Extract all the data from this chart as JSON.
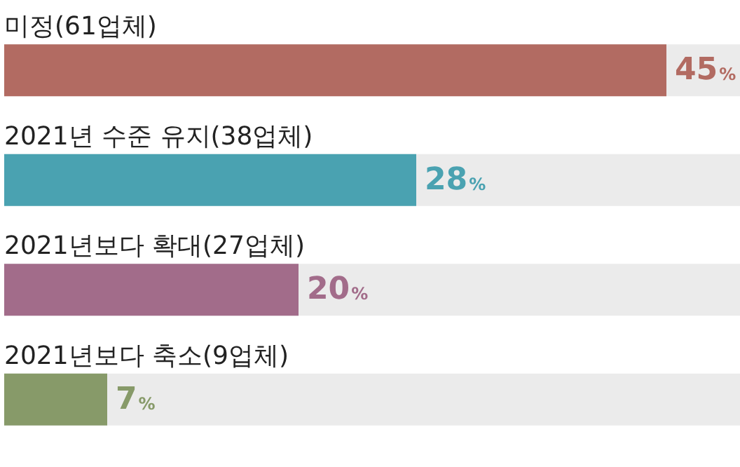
{
  "chart_data": {
    "type": "bar",
    "orientation": "horizontal",
    "categories": [
      "미정(61업체)",
      "2021년 수준 유지(38업체)",
      "2021년보다 확대(27업체)",
      "2021년보다 축소(9업체)"
    ],
    "values": [
      45,
      28,
      20,
      7
    ],
    "colors": [
      "#b26b62",
      "#4aa2b1",
      "#a26c8a",
      "#879a69"
    ],
    "value_labels": [
      "45%",
      "28%",
      "20%",
      "7%"
    ],
    "xlim": [
      0,
      50
    ]
  }
}
